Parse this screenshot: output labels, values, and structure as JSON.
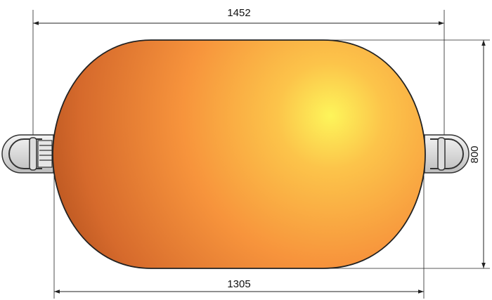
{
  "dimensions": {
    "overall_length": "1452",
    "body_length": "1305",
    "diameter": "800"
  }
}
